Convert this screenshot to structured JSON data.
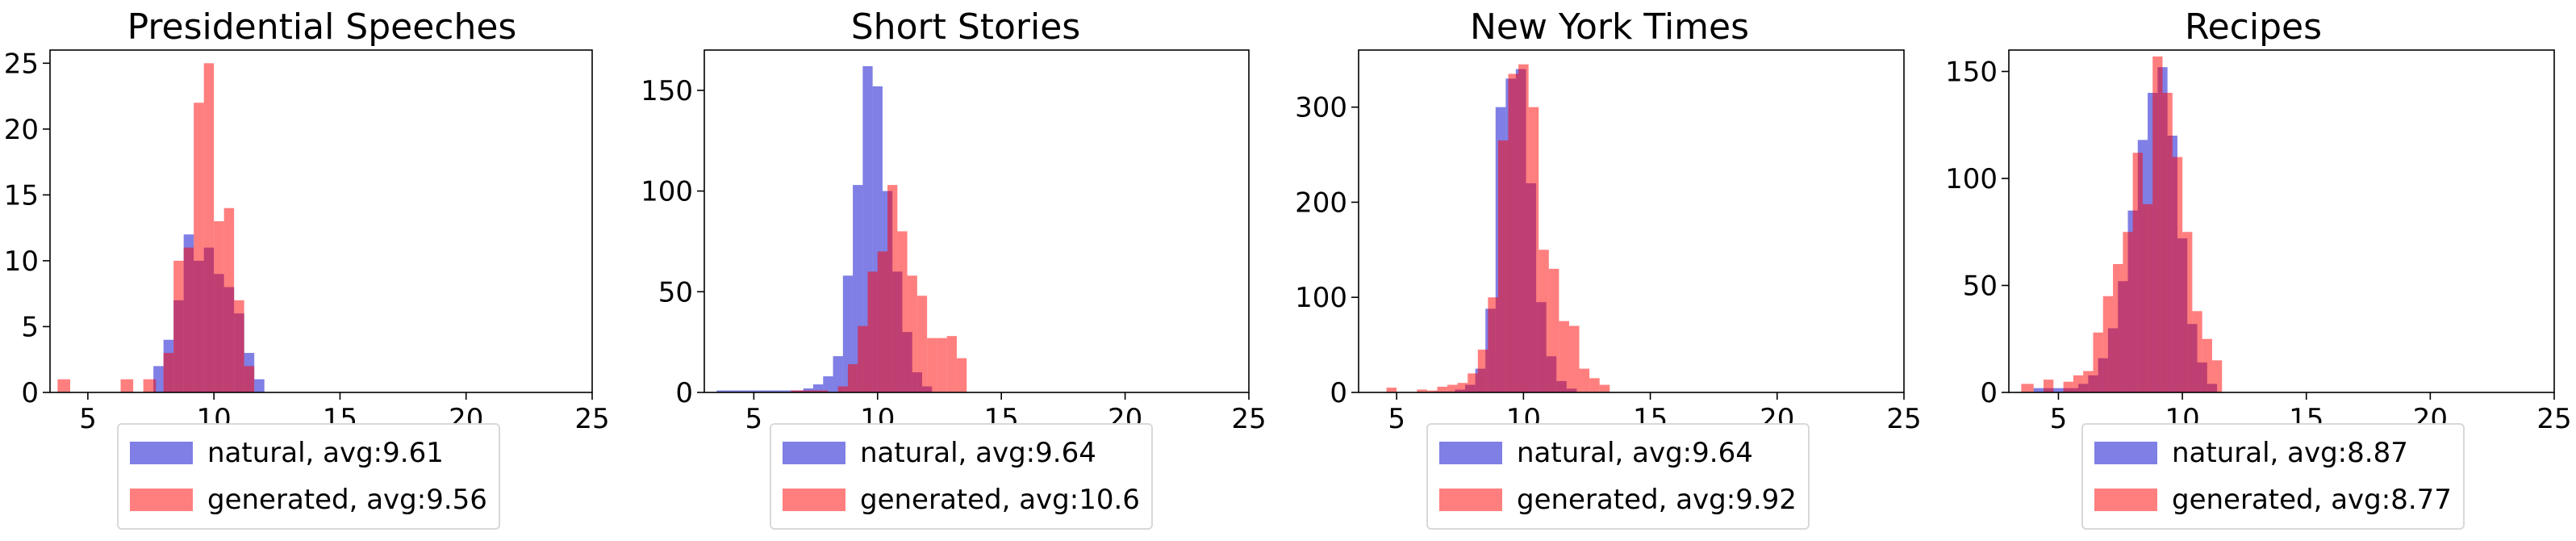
{
  "colors": {
    "natural": "#0000cc",
    "generated": "#ff0000",
    "opacity": 0.5
  },
  "chart_data": [
    {
      "type": "histogram",
      "title": "Presidential Speeches",
      "xlim": [
        3.5,
        25
      ],
      "ylim": [
        0,
        26
      ],
      "xticks": [
        5,
        10,
        15,
        20,
        25
      ],
      "yticks": [
        0,
        5,
        10,
        15,
        20,
        25
      ],
      "legend_position": "below",
      "series": [
        {
          "name": "natural, avg:9.61",
          "key": "natural",
          "bins": [
            [
              7.6,
              8.0,
              2
            ],
            [
              8.0,
              8.4,
              4
            ],
            [
              8.4,
              8.8,
              7
            ],
            [
              8.8,
              9.2,
              12
            ],
            [
              9.2,
              9.6,
              10
            ],
            [
              9.6,
              10.0,
              11
            ],
            [
              10.0,
              10.4,
              9
            ],
            [
              10.4,
              10.8,
              8
            ],
            [
              10.8,
              11.2,
              6
            ],
            [
              11.2,
              11.6,
              3
            ],
            [
              11.6,
              12.0,
              1
            ]
          ]
        },
        {
          "name": "generated, avg:9.56",
          "key": "generated",
          "bins": [
            [
              3.8,
              4.3,
              1
            ],
            [
              6.3,
              6.8,
              1
            ],
            [
              7.2,
              7.7,
              1
            ],
            [
              8.0,
              8.4,
              3
            ],
            [
              8.4,
              8.8,
              10
            ],
            [
              8.8,
              9.2,
              11
            ],
            [
              9.2,
              9.6,
              22
            ],
            [
              9.6,
              10.0,
              25
            ],
            [
              10.0,
              10.4,
              13
            ],
            [
              10.4,
              10.8,
              14
            ],
            [
              10.8,
              11.2,
              7
            ],
            [
              11.2,
              11.6,
              2
            ]
          ]
        }
      ]
    },
    {
      "type": "histogram",
      "title": "Short Stories",
      "xlim": [
        3.0,
        25
      ],
      "ylim": [
        0,
        170
      ],
      "xticks": [
        5,
        10,
        15,
        20,
        25
      ],
      "yticks": [
        0,
        50,
        100,
        150
      ],
      "legend_position": "below",
      "series": [
        {
          "name": "natural, avg:9.64",
          "key": "natural",
          "bins": [
            [
              3.5,
              7.0,
              1
            ],
            [
              7.0,
              7.4,
              2
            ],
            [
              7.4,
              7.8,
              4
            ],
            [
              7.8,
              8.2,
              8
            ],
            [
              8.2,
              8.6,
              18
            ],
            [
              8.6,
              9.0,
              58
            ],
            [
              9.0,
              9.4,
              103
            ],
            [
              9.4,
              9.8,
              162
            ],
            [
              9.8,
              10.2,
              152
            ],
            [
              10.2,
              10.6,
              100
            ],
            [
              10.6,
              11.0,
              60
            ],
            [
              11.0,
              11.4,
              30
            ],
            [
              11.4,
              11.8,
              10
            ],
            [
              11.8,
              12.2,
              3
            ]
          ]
        },
        {
          "name": "generated, avg:10.6",
          "key": "generated",
          "bins": [
            [
              6.5,
              8.0,
              1
            ],
            [
              8.4,
              8.8,
              3
            ],
            [
              8.8,
              9.2,
              14
            ],
            [
              9.2,
              9.6,
              33
            ],
            [
              9.6,
              10.0,
              60
            ],
            [
              10.0,
              10.4,
              70
            ],
            [
              10.4,
              10.8,
              103
            ],
            [
              10.8,
              11.2,
              80
            ],
            [
              11.2,
              11.6,
              58
            ],
            [
              11.6,
              12.0,
              48
            ],
            [
              12.0,
              12.4,
              27
            ],
            [
              12.4,
              12.8,
              27
            ],
            [
              12.8,
              13.2,
              28
            ],
            [
              13.2,
              13.6,
              17
            ]
          ]
        }
      ]
    },
    {
      "type": "histogram",
      "title": "New York Times",
      "xlim": [
        3.5,
        25
      ],
      "ylim": [
        0,
        360
      ],
      "xticks": [
        5,
        10,
        15,
        20,
        25
      ],
      "yticks": [
        0,
        100,
        200,
        300
      ],
      "legend_position": "below",
      "series": [
        {
          "name": "natural, avg:9.64",
          "key": "natural",
          "bins": [
            [
              6.5,
              7.3,
              1
            ],
            [
              7.3,
              7.7,
              3
            ],
            [
              7.7,
              8.1,
              8
            ],
            [
              8.1,
              8.5,
              25
            ],
            [
              8.5,
              8.9,
              88
            ],
            [
              8.9,
              9.3,
              300
            ],
            [
              9.3,
              9.7,
              330
            ],
            [
              9.7,
              10.1,
              340
            ],
            [
              10.1,
              10.5,
              220
            ],
            [
              10.5,
              10.9,
              95
            ],
            [
              10.9,
              11.3,
              38
            ],
            [
              11.3,
              11.7,
              12
            ],
            [
              11.7,
              12.1,
              4
            ]
          ]
        },
        {
          "name": "generated, avg:9.92",
          "key": "generated",
          "bins": [
            [
              4.6,
              5.0,
              5
            ],
            [
              5.8,
              6.2,
              3
            ],
            [
              6.2,
              6.6,
              2
            ],
            [
              6.6,
              7.0,
              6
            ],
            [
              7.0,
              7.4,
              8
            ],
            [
              7.4,
              7.8,
              10
            ],
            [
              7.8,
              8.2,
              20
            ],
            [
              8.2,
              8.6,
              45
            ],
            [
              8.6,
              9.0,
              100
            ],
            [
              9.0,
              9.4,
              265
            ],
            [
              9.4,
              9.8,
              335
            ],
            [
              9.8,
              10.2,
              345
            ],
            [
              10.2,
              10.6,
              300
            ],
            [
              10.6,
              11.0,
              150
            ],
            [
              11.0,
              11.4,
              130
            ],
            [
              11.4,
              11.8,
              75
            ],
            [
              11.8,
              12.2,
              70
            ],
            [
              12.2,
              12.6,
              25
            ],
            [
              12.6,
              13.0,
              15
            ],
            [
              13.0,
              13.4,
              8
            ]
          ]
        }
      ]
    },
    {
      "type": "histogram",
      "title": "Recipes",
      "xlim": [
        3.0,
        25
      ],
      "ylim": [
        0,
        160
      ],
      "xticks": [
        5,
        10,
        15,
        20,
        25
      ],
      "yticks": [
        0,
        50,
        100,
        150
      ],
      "legend_position": "below",
      "series": [
        {
          "name": "natural, avg:8.87",
          "key": "natural",
          "bins": [
            [
              4.0,
              5.8,
              2
            ],
            [
              5.8,
              6.2,
              4
            ],
            [
              6.2,
              6.6,
              8
            ],
            [
              6.6,
              7.0,
              16
            ],
            [
              7.0,
              7.4,
              30
            ],
            [
              7.4,
              7.8,
              52
            ],
            [
              7.8,
              8.2,
              85
            ],
            [
              8.2,
              8.6,
              118
            ],
            [
              8.6,
              9.0,
              140
            ],
            [
              9.0,
              9.4,
              152
            ],
            [
              9.4,
              9.8,
              120
            ],
            [
              9.8,
              10.2,
              72
            ],
            [
              10.2,
              10.6,
              32
            ],
            [
              10.6,
              11.0,
              14
            ],
            [
              11.0,
              11.4,
              4
            ]
          ]
        },
        {
          "name": "generated, avg:8.77",
          "key": "generated",
          "bins": [
            [
              3.5,
              4.0,
              4
            ],
            [
              4.4,
              4.8,
              6
            ],
            [
              5.2,
              5.6,
              5
            ],
            [
              5.6,
              6.0,
              8
            ],
            [
              6.0,
              6.4,
              10
            ],
            [
              6.4,
              6.8,
              28
            ],
            [
              6.8,
              7.2,
              45
            ],
            [
              7.2,
              7.6,
              60
            ],
            [
              7.6,
              8.0,
              75
            ],
            [
              8.0,
              8.4,
              112
            ],
            [
              8.4,
              8.8,
              88
            ],
            [
              8.8,
              9.2,
              157
            ],
            [
              9.2,
              9.6,
              140
            ],
            [
              9.6,
              10.0,
              110
            ],
            [
              10.0,
              10.4,
              75
            ],
            [
              10.4,
              10.8,
              38
            ],
            [
              10.8,
              11.2,
              25
            ],
            [
              11.2,
              11.6,
              15
            ]
          ]
        }
      ]
    }
  ]
}
